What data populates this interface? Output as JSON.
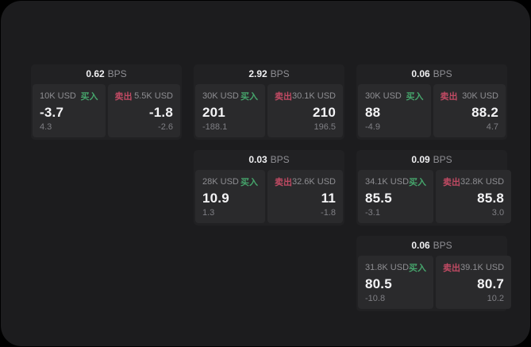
{
  "labels": {
    "unit": "BPS",
    "buy": "买入",
    "sell": "卖出"
  },
  "colors": {
    "background": "#000000",
    "surface": "#1c1c1e",
    "card": "#212123",
    "panel": "#2a2a2c",
    "buy_accent": "#46a56c",
    "sell_accent": "#c04a63",
    "text_primary": "#f4f4f6",
    "text_muted": "#8e8e92"
  },
  "cards": [
    {
      "column": 1,
      "row": 1,
      "bps": "0.62",
      "buy": {
        "notional": "10K USD",
        "price": "-3.7",
        "delta": "4.3"
      },
      "sell": {
        "notional": "5.5K USD",
        "price": "-1.8",
        "delta": "-2.6"
      }
    },
    {
      "column": 2,
      "row": 1,
      "bps": "2.92",
      "buy": {
        "notional": "30K USD",
        "price": "201",
        "delta": "-188.1"
      },
      "sell": {
        "notional": "30.1K USD",
        "price": "210",
        "delta": "196.5"
      }
    },
    {
      "column": 3,
      "row": 1,
      "bps": "0.06",
      "buy": {
        "notional": "30K USD",
        "price": "88",
        "delta": "-4.9"
      },
      "sell": {
        "notional": "30K USD",
        "price": "88.2",
        "delta": "4.7"
      }
    },
    {
      "column": 2,
      "row": 2,
      "bps": "0.03",
      "buy": {
        "notional": "28K USD",
        "price": "10.9",
        "delta": "1.3"
      },
      "sell": {
        "notional": "32.6K USD",
        "price": "11",
        "delta": "-1.8"
      }
    },
    {
      "column": 3,
      "row": 2,
      "bps": "0.09",
      "buy": {
        "notional": "34.1K USD",
        "price": "85.5",
        "delta": "-3.1"
      },
      "sell": {
        "notional": "32.8K USD",
        "price": "85.8",
        "delta": "3.0"
      }
    },
    {
      "column": 3,
      "row": 3,
      "bps": "0.06",
      "buy": {
        "notional": "31.8K USD",
        "price": "80.5",
        "delta": "-10.8"
      },
      "sell": {
        "notional": "39.1K USD",
        "price": "80.7",
        "delta": "10.2"
      }
    }
  ]
}
